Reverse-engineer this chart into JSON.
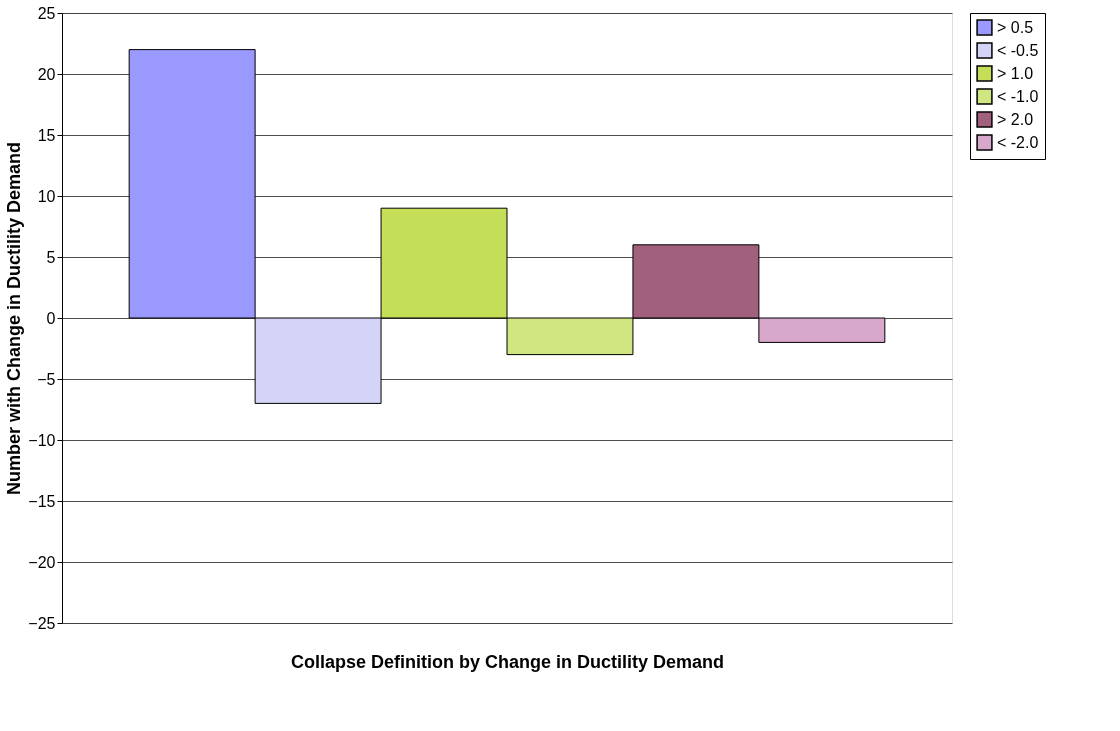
{
  "chart_data": {
    "type": "bar",
    "xlabel": "Collapse Definition by Change in Ductility Demand",
    "ylabel": "Number with Change in Ductility Demand",
    "categories": [
      null
    ],
    "series": [
      {
        "name": "> 0.5",
        "color": "#9999ff",
        "values": [
          22
        ]
      },
      {
        "name": "< -0.5",
        "color": "#d4d4f8",
        "values": [
          -7
        ]
      },
      {
        "name": "> 1.0",
        "color": "#c4de58",
        "values": [
          9
        ]
      },
      {
        "name": "< -1.0",
        "color": "#d0e680",
        "values": [
          -3
        ]
      },
      {
        "name": "> 2.0",
        "color": "#a0607e",
        "values": [
          6
        ]
      },
      {
        "name": "< -2.0",
        "color": "#d8a8cc",
        "values": [
          -2
        ]
      }
    ],
    "ylim": [
      -25,
      25
    ],
    "yticks": [
      -25,
      -20,
      -15,
      -10,
      -5,
      0,
      5,
      10,
      15,
      20,
      25
    ],
    "grid": "y",
    "legend": "right",
    "tick_labels": "y"
  }
}
